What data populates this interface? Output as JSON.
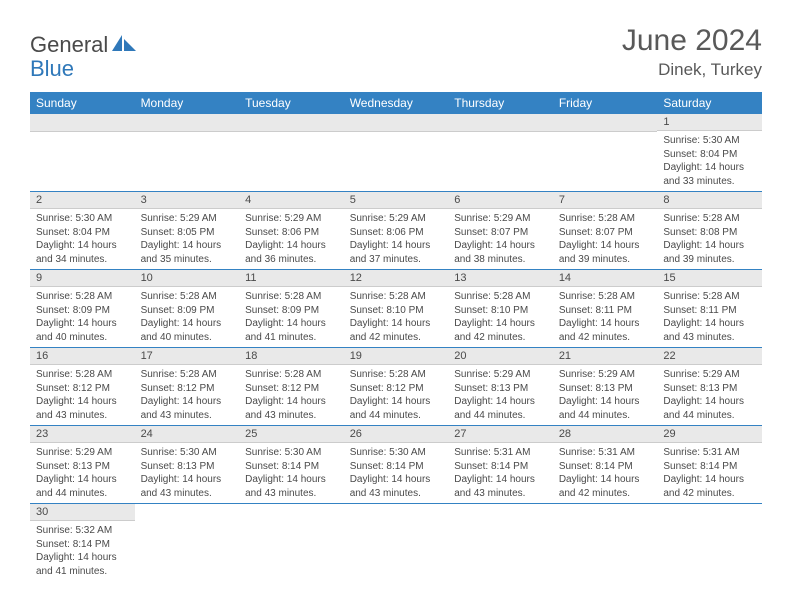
{
  "brand": {
    "general": "General",
    "blue": "Blue"
  },
  "title": "June 2024",
  "location": "Dinek, Turkey",
  "colors": {
    "header_bg": "#3482c3",
    "header_text": "#ffffff",
    "daynum_bg": "#e9e9e9",
    "text": "#4a4a4a",
    "title_text": "#595959",
    "row_divider": "#3482c3"
  },
  "fonts": {
    "title_size_pt": 30,
    "location_size_pt": 17,
    "header_size_pt": 12,
    "daynum_size_pt": 11,
    "body_size_pt": 10
  },
  "days_of_week": [
    "Sunday",
    "Monday",
    "Tuesday",
    "Wednesday",
    "Thursday",
    "Friday",
    "Saturday"
  ],
  "weeks": [
    [
      {
        "blank": true
      },
      {
        "blank": true
      },
      {
        "blank": true
      },
      {
        "blank": true
      },
      {
        "blank": true
      },
      {
        "blank": true
      },
      {
        "n": "1",
        "sunrise": "Sunrise: 5:30 AM",
        "sunset": "Sunset: 8:04 PM",
        "dl1": "Daylight: 14 hours",
        "dl2": "and 33 minutes."
      }
    ],
    [
      {
        "n": "2",
        "sunrise": "Sunrise: 5:30 AM",
        "sunset": "Sunset: 8:04 PM",
        "dl1": "Daylight: 14 hours",
        "dl2": "and 34 minutes."
      },
      {
        "n": "3",
        "sunrise": "Sunrise: 5:29 AM",
        "sunset": "Sunset: 8:05 PM",
        "dl1": "Daylight: 14 hours",
        "dl2": "and 35 minutes."
      },
      {
        "n": "4",
        "sunrise": "Sunrise: 5:29 AM",
        "sunset": "Sunset: 8:06 PM",
        "dl1": "Daylight: 14 hours",
        "dl2": "and 36 minutes."
      },
      {
        "n": "5",
        "sunrise": "Sunrise: 5:29 AM",
        "sunset": "Sunset: 8:06 PM",
        "dl1": "Daylight: 14 hours",
        "dl2": "and 37 minutes."
      },
      {
        "n": "6",
        "sunrise": "Sunrise: 5:29 AM",
        "sunset": "Sunset: 8:07 PM",
        "dl1": "Daylight: 14 hours",
        "dl2": "and 38 minutes."
      },
      {
        "n": "7",
        "sunrise": "Sunrise: 5:28 AM",
        "sunset": "Sunset: 8:07 PM",
        "dl1": "Daylight: 14 hours",
        "dl2": "and 39 minutes."
      },
      {
        "n": "8",
        "sunrise": "Sunrise: 5:28 AM",
        "sunset": "Sunset: 8:08 PM",
        "dl1": "Daylight: 14 hours",
        "dl2": "and 39 minutes."
      }
    ],
    [
      {
        "n": "9",
        "sunrise": "Sunrise: 5:28 AM",
        "sunset": "Sunset: 8:09 PM",
        "dl1": "Daylight: 14 hours",
        "dl2": "and 40 minutes."
      },
      {
        "n": "10",
        "sunrise": "Sunrise: 5:28 AM",
        "sunset": "Sunset: 8:09 PM",
        "dl1": "Daylight: 14 hours",
        "dl2": "and 40 minutes."
      },
      {
        "n": "11",
        "sunrise": "Sunrise: 5:28 AM",
        "sunset": "Sunset: 8:09 PM",
        "dl1": "Daylight: 14 hours",
        "dl2": "and 41 minutes."
      },
      {
        "n": "12",
        "sunrise": "Sunrise: 5:28 AM",
        "sunset": "Sunset: 8:10 PM",
        "dl1": "Daylight: 14 hours",
        "dl2": "and 42 minutes."
      },
      {
        "n": "13",
        "sunrise": "Sunrise: 5:28 AM",
        "sunset": "Sunset: 8:10 PM",
        "dl1": "Daylight: 14 hours",
        "dl2": "and 42 minutes."
      },
      {
        "n": "14",
        "sunrise": "Sunrise: 5:28 AM",
        "sunset": "Sunset: 8:11 PM",
        "dl1": "Daylight: 14 hours",
        "dl2": "and 42 minutes."
      },
      {
        "n": "15",
        "sunrise": "Sunrise: 5:28 AM",
        "sunset": "Sunset: 8:11 PM",
        "dl1": "Daylight: 14 hours",
        "dl2": "and 43 minutes."
      }
    ],
    [
      {
        "n": "16",
        "sunrise": "Sunrise: 5:28 AM",
        "sunset": "Sunset: 8:12 PM",
        "dl1": "Daylight: 14 hours",
        "dl2": "and 43 minutes."
      },
      {
        "n": "17",
        "sunrise": "Sunrise: 5:28 AM",
        "sunset": "Sunset: 8:12 PM",
        "dl1": "Daylight: 14 hours",
        "dl2": "and 43 minutes."
      },
      {
        "n": "18",
        "sunrise": "Sunrise: 5:28 AM",
        "sunset": "Sunset: 8:12 PM",
        "dl1": "Daylight: 14 hours",
        "dl2": "and 43 minutes."
      },
      {
        "n": "19",
        "sunrise": "Sunrise: 5:28 AM",
        "sunset": "Sunset: 8:12 PM",
        "dl1": "Daylight: 14 hours",
        "dl2": "and 44 minutes."
      },
      {
        "n": "20",
        "sunrise": "Sunrise: 5:29 AM",
        "sunset": "Sunset: 8:13 PM",
        "dl1": "Daylight: 14 hours",
        "dl2": "and 44 minutes."
      },
      {
        "n": "21",
        "sunrise": "Sunrise: 5:29 AM",
        "sunset": "Sunset: 8:13 PM",
        "dl1": "Daylight: 14 hours",
        "dl2": "and 44 minutes."
      },
      {
        "n": "22",
        "sunrise": "Sunrise: 5:29 AM",
        "sunset": "Sunset: 8:13 PM",
        "dl1": "Daylight: 14 hours",
        "dl2": "and 44 minutes."
      }
    ],
    [
      {
        "n": "23",
        "sunrise": "Sunrise: 5:29 AM",
        "sunset": "Sunset: 8:13 PM",
        "dl1": "Daylight: 14 hours",
        "dl2": "and 44 minutes."
      },
      {
        "n": "24",
        "sunrise": "Sunrise: 5:30 AM",
        "sunset": "Sunset: 8:13 PM",
        "dl1": "Daylight: 14 hours",
        "dl2": "and 43 minutes."
      },
      {
        "n": "25",
        "sunrise": "Sunrise: 5:30 AM",
        "sunset": "Sunset: 8:14 PM",
        "dl1": "Daylight: 14 hours",
        "dl2": "and 43 minutes."
      },
      {
        "n": "26",
        "sunrise": "Sunrise: 5:30 AM",
        "sunset": "Sunset: 8:14 PM",
        "dl1": "Daylight: 14 hours",
        "dl2": "and 43 minutes."
      },
      {
        "n": "27",
        "sunrise": "Sunrise: 5:31 AM",
        "sunset": "Sunset: 8:14 PM",
        "dl1": "Daylight: 14 hours",
        "dl2": "and 43 minutes."
      },
      {
        "n": "28",
        "sunrise": "Sunrise: 5:31 AM",
        "sunset": "Sunset: 8:14 PM",
        "dl1": "Daylight: 14 hours",
        "dl2": "and 42 minutes."
      },
      {
        "n": "29",
        "sunrise": "Sunrise: 5:31 AM",
        "sunset": "Sunset: 8:14 PM",
        "dl1": "Daylight: 14 hours",
        "dl2": "and 42 minutes."
      }
    ],
    [
      {
        "n": "30",
        "sunrise": "Sunrise: 5:32 AM",
        "sunset": "Sunset: 8:14 PM",
        "dl1": "Daylight: 14 hours",
        "dl2": "and 41 minutes."
      },
      {
        "blank": true
      },
      {
        "blank": true
      },
      {
        "blank": true
      },
      {
        "blank": true
      },
      {
        "blank": true
      },
      {
        "blank": true
      }
    ]
  ]
}
